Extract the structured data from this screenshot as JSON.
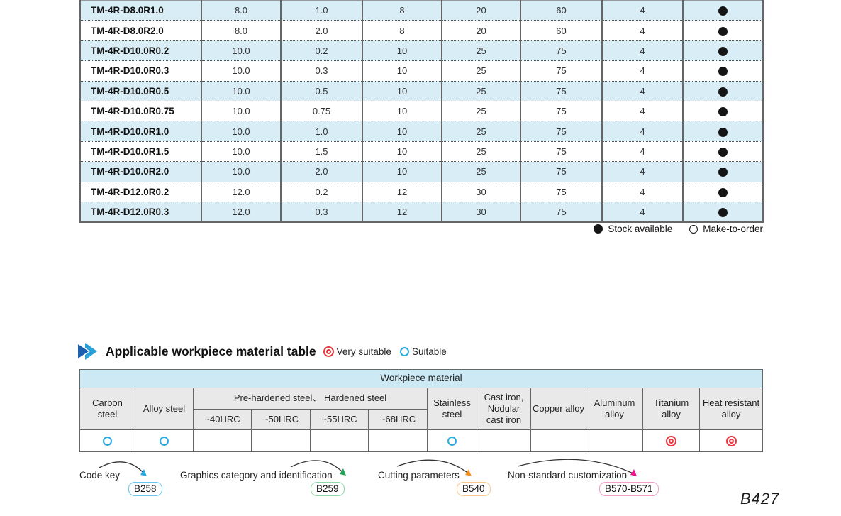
{
  "spec_table": {
    "rows": [
      {
        "model": "TM-4R-D8.0R1.0",
        "values": [
          "8.0",
          "1.0",
          "8",
          "20",
          "60",
          "4"
        ],
        "availability": "stock"
      },
      {
        "model": "TM-4R-D8.0R2.0",
        "values": [
          "8.0",
          "2.0",
          "8",
          "20",
          "60",
          "4"
        ],
        "availability": "stock"
      },
      {
        "model": "TM-4R-D10.0R0.2",
        "values": [
          "10.0",
          "0.2",
          "10",
          "25",
          "75",
          "4"
        ],
        "availability": "stock"
      },
      {
        "model": "TM-4R-D10.0R0.3",
        "values": [
          "10.0",
          "0.3",
          "10",
          "25",
          "75",
          "4"
        ],
        "availability": "stock"
      },
      {
        "model": "TM-4R-D10.0R0.5",
        "values": [
          "10.0",
          "0.5",
          "10",
          "25",
          "75",
          "4"
        ],
        "availability": "stock"
      },
      {
        "model": "TM-4R-D10.0R0.75",
        "values": [
          "10.0",
          "0.75",
          "10",
          "25",
          "75",
          "4"
        ],
        "availability": "stock"
      },
      {
        "model": "TM-4R-D10.0R1.0",
        "values": [
          "10.0",
          "1.0",
          "10",
          "25",
          "75",
          "4"
        ],
        "availability": "stock"
      },
      {
        "model": "TM-4R-D10.0R1.5",
        "values": [
          "10.0",
          "1.5",
          "10",
          "25",
          "75",
          "4"
        ],
        "availability": "stock"
      },
      {
        "model": "TM-4R-D10.0R2.0",
        "values": [
          "10.0",
          "2.0",
          "10",
          "25",
          "75",
          "4"
        ],
        "availability": "stock"
      },
      {
        "model": "TM-4R-D12.0R0.2",
        "values": [
          "12.0",
          "0.2",
          "12",
          "30",
          "75",
          "4"
        ],
        "availability": "stock"
      },
      {
        "model": "TM-4R-D12.0R0.3",
        "values": [
          "12.0",
          "0.3",
          "12",
          "30",
          "75",
          "4"
        ],
        "availability": "stock"
      }
    ]
  },
  "stock_legend": {
    "available": "Stock available",
    "make_to_order": "Make-to-order"
  },
  "section": {
    "title": "Applicable workpiece material table",
    "very_suitable": "Very suitable",
    "suitable": "Suitable"
  },
  "material_table": {
    "group_header": "Workpiece material",
    "col_carbon": "Carbon steel",
    "col_alloy": "Alloy steel",
    "col_prehardened": "Pre-hardened steel、 Hardened steel",
    "hrc": [
      "~40HRC",
      "~50HRC",
      "~55HRC",
      "~68HRC"
    ],
    "col_stainless": "Stainless steel",
    "col_cast_iron": "Cast iron, Nodular cast iron",
    "col_copper": "Copper alloy",
    "col_aluminum": "Aluminum alloy",
    "col_titanium": "Titanium alloy",
    "col_heat": "Heat resistant alloy",
    "ratings": [
      "suitable",
      "suitable",
      "",
      "",
      "",
      "",
      "suitable",
      "",
      "",
      "",
      "very_suitable",
      "very_suitable"
    ]
  },
  "colors": {
    "row_stripe_blue": "#d9edf7",
    "material_header_blue": "#cdeaf4",
    "header_gray": "#e9e9e9",
    "suitable_blue": "#29abe2",
    "very_suitable_red": "#e8373d",
    "title_icon_dark_blue": "#1b5fae",
    "title_icon_light_blue": "#2ba0d8"
  },
  "footer": {
    "links": [
      {
        "label": "Code key",
        "code": "B258",
        "badge_border": "#66c7ee",
        "arrow": "#29abe2"
      },
      {
        "label": "Graphics category and identification",
        "code": "B259",
        "badge_border": "#90d7aa",
        "arrow": "#22a455"
      },
      {
        "label": "Cutting parameters",
        "code": "B540",
        "badge_border": "#f7c98e",
        "arrow": "#f79420"
      },
      {
        "label": "Non-standard customization",
        "code": "B570-B571",
        "badge_border": "#f2a0c9",
        "arrow": "#ec0f8c"
      }
    ],
    "page_number": "B427"
  }
}
